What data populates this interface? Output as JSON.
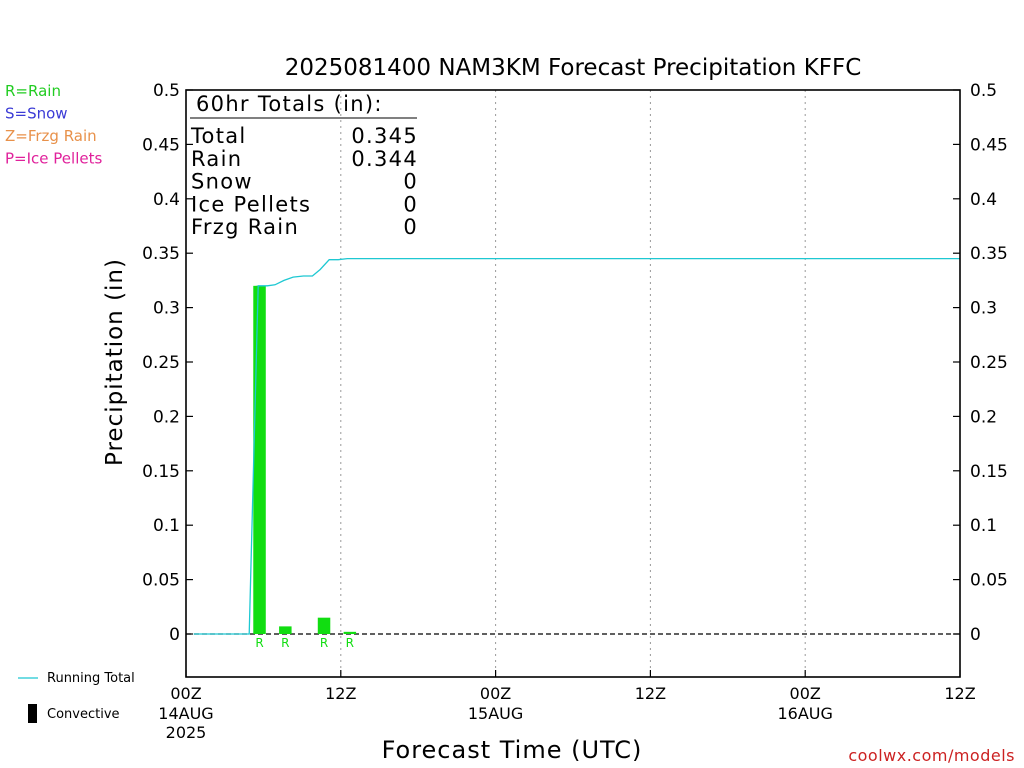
{
  "chart_data": {
    "type": "bar",
    "title": "2025081400 NAM3KM Forecast Precipitation KFFC",
    "xlabel": "Forecast Time (UTC)",
    "ylabel": "Precipitation (in)",
    "ylim": [
      -0.04,
      0.5
    ],
    "xlim_hours": [
      0,
      60
    ],
    "y_ticks": [
      "0",
      "0.05",
      "0.1",
      "0.15",
      "0.2",
      "0.25",
      "0.3",
      "0.35",
      "0.4",
      "0.45",
      "0.5"
    ],
    "x_ticks": [
      {
        "hour": 0,
        "label": "00Z",
        "sub": [
          "14AUG",
          "2025"
        ]
      },
      {
        "hour": 12,
        "label": "12Z",
        "sub": []
      },
      {
        "hour": 24,
        "label": "00Z",
        "sub": [
          "15AUG"
        ]
      },
      {
        "hour": 36,
        "label": "12Z",
        "sub": []
      },
      {
        "hour": 48,
        "label": "00Z",
        "sub": [
          "16AUG"
        ]
      },
      {
        "hour": 60,
        "label": "12Z",
        "sub": []
      }
    ],
    "grid": "vertical-dotted",
    "precip_type_legend": [
      {
        "text": "R=Rain",
        "color": "#22cc22"
      },
      {
        "text": "S=Snow",
        "color": "#3b3bd6"
      },
      {
        "text": "Z=Frzg Rain",
        "color": "#e8914a"
      },
      {
        "text": "P=Ice Pellets",
        "color": "#e0219b"
      }
    ],
    "bars": [
      {
        "hour": 5.7,
        "value": 0.32,
        "type": "R"
      },
      {
        "hour": 7.7,
        "value": 0.007,
        "type": "R"
      },
      {
        "hour": 10.7,
        "value": 0.015,
        "type": "R"
      },
      {
        "hour": 12.7,
        "value": 0.002,
        "type": "R"
      }
    ],
    "convective_bar": {
      "hour": 5.6,
      "value": 0.32
    },
    "running_total": {
      "hours": [
        0.6,
        4.9,
        5.6,
        6.3,
        6.9,
        7.6,
        8.3,
        9.1,
        9.8,
        10.4,
        11.1,
        11.8,
        12.5,
        60
      ],
      "values": [
        0.0,
        0.0,
        0.32,
        0.32,
        0.321,
        0.325,
        0.328,
        0.329,
        0.329,
        0.335,
        0.344,
        0.344,
        0.345,
        0.345
      ]
    },
    "totals_box": {
      "heading": "60hr Totals (in):",
      "rows": [
        {
          "label": "Total",
          "value": "0.345"
        },
        {
          "label": "Rain",
          "value": "0.344"
        },
        {
          "label": "Snow",
          "value": "0"
        },
        {
          "label": "Ice Pellets",
          "value": "0"
        },
        {
          "label": "Frzg Rain",
          "value": "0"
        }
      ]
    },
    "series_legend": [
      {
        "text": "Running Total",
        "symbol": "line",
        "color": "#1ec8d2"
      },
      {
        "text": "Convective",
        "symbol": "bar",
        "color": "#000000"
      }
    ],
    "colors": {
      "rain_bar": "#11dd11",
      "running_total": "#1ec8d2",
      "convective": "#000000"
    },
    "credit": "coolwx.com/models"
  }
}
